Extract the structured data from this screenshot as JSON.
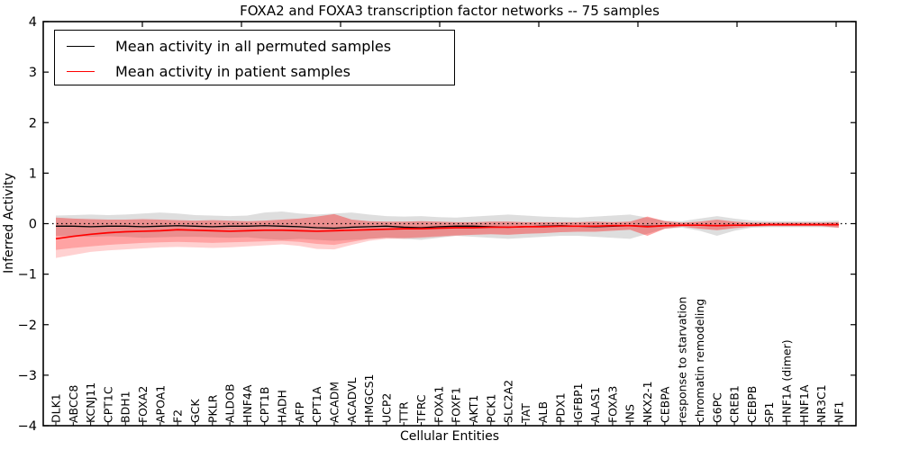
{
  "chart_data": {
    "type": "line",
    "title": "FOXA2 and FOXA3 transcription factor networks -- 75 samples",
    "xlabel": "Cellular Entities",
    "ylabel": "Inferred Activity",
    "ylim": [
      -4,
      4
    ],
    "yticks": [
      -4,
      -3,
      -2,
      -1,
      0,
      1,
      2,
      3,
      4
    ],
    "grid": false,
    "legend_position": "upper left",
    "zero_line": {
      "y": 0,
      "style": "dotted",
      "color": "#000000"
    },
    "categories": [
      "DLK1",
      "ABCC8",
      "KCNJ11",
      "CPT1C",
      "BDH1",
      "FOXA2",
      "APOA1",
      "F2",
      "GCK",
      "PKLR",
      "ALDOB",
      "HNF4A",
      "CPT1B",
      "HADH",
      "AFP",
      "CPT1A",
      "ACADM",
      "ACADVL",
      "HMGCS1",
      "UCP2",
      "TTR",
      "TFRC",
      "FOXA1",
      "FOXF1",
      "AKT1",
      "PCK1",
      "SLC2A2",
      "TAT",
      "ALB",
      "PDX1",
      "IGFBP1",
      "ALAS1",
      "FOXA3",
      "INS",
      "NKX2-1",
      "CEBPA",
      "response to starvation",
      "chromatin remodeling",
      "G6PC",
      "CREB1",
      "CEBPB",
      "SP1",
      "HNF1A (dimer)",
      "HNF1A",
      "NR3C1",
      "NF1"
    ],
    "series": [
      {
        "name": "Mean activity in all permuted samples",
        "color": "#000000",
        "values": [
          -0.05,
          -0.05,
          -0.06,
          -0.05,
          -0.05,
          -0.06,
          -0.05,
          -0.04,
          -0.05,
          -0.06,
          -0.05,
          -0.05,
          -0.04,
          -0.05,
          -0.06,
          -0.08,
          -0.09,
          -0.07,
          -0.06,
          -0.05,
          -0.07,
          -0.08,
          -0.06,
          -0.05,
          -0.05,
          -0.06,
          -0.07,
          -0.06,
          -0.05,
          -0.04,
          -0.05,
          -0.06,
          -0.05,
          -0.04,
          -0.05,
          -0.04,
          -0.03,
          -0.03,
          -0.04,
          -0.03,
          -0.03,
          -0.02,
          -0.02,
          -0.02,
          -0.02,
          -0.02
        ],
        "band": {
          "color": "rgba(0,0,0,0.13)",
          "upper": [
            0.16,
            0.17,
            0.18,
            0.17,
            0.18,
            0.2,
            0.22,
            0.2,
            0.17,
            0.16,
            0.15,
            0.16,
            0.22,
            0.24,
            0.2,
            0.18,
            0.2,
            0.22,
            0.18,
            0.15,
            0.14,
            0.15,
            0.13,
            0.12,
            0.14,
            0.16,
            0.18,
            0.16,
            0.14,
            0.13,
            0.12,
            0.14,
            0.16,
            0.18,
            0.12,
            0.06,
            0.05,
            0.1,
            0.15,
            0.1,
            0.06,
            0.05,
            0.05,
            0.05,
            0.05,
            0.06
          ],
          "lower": [
            -0.24,
            -0.25,
            -0.26,
            -0.25,
            -0.26,
            -0.28,
            -0.27,
            -0.26,
            -0.26,
            -0.27,
            -0.28,
            -0.27,
            -0.3,
            -0.32,
            -0.3,
            -0.32,
            -0.34,
            -0.32,
            -0.3,
            -0.28,
            -0.3,
            -0.32,
            -0.28,
            -0.24,
            -0.26,
            -0.28,
            -0.3,
            -0.28,
            -0.26,
            -0.24,
            -0.24,
            -0.26,
            -0.28,
            -0.3,
            -0.2,
            -0.1,
            -0.08,
            -0.14,
            -0.24,
            -0.14,
            -0.08,
            -0.07,
            -0.07,
            -0.07,
            -0.07,
            -0.08
          ]
        }
      },
      {
        "name": "Mean activity in patient samples",
        "color": "#ff0000",
        "values": [
          -0.3,
          -0.25,
          -0.21,
          -0.18,
          -0.16,
          -0.15,
          -0.14,
          -0.12,
          -0.13,
          -0.14,
          -0.15,
          -0.14,
          -0.13,
          -0.13,
          -0.14,
          -0.15,
          -0.14,
          -0.13,
          -0.12,
          -0.11,
          -0.1,
          -0.1,
          -0.09,
          -0.08,
          -0.08,
          -0.07,
          -0.07,
          -0.06,
          -0.06,
          -0.05,
          -0.05,
          -0.05,
          -0.04,
          -0.04,
          -0.06,
          -0.04,
          -0.03,
          -0.03,
          -0.04,
          -0.03,
          -0.03,
          -0.02,
          -0.02,
          -0.02,
          -0.02,
          -0.02
        ],
        "band": {
          "color": "rgba(255,0,0,0.22)",
          "upper": [
            0.12,
            0.1,
            0.09,
            0.08,
            0.08,
            0.09,
            0.08,
            0.07,
            0.06,
            0.07,
            0.06,
            0.05,
            0.06,
            0.08,
            0.1,
            0.14,
            0.19,
            0.08,
            0.05,
            0.04,
            0.04,
            0.05,
            0.04,
            0.03,
            0.03,
            0.04,
            0.04,
            0.03,
            0.03,
            0.03,
            0.03,
            0.04,
            0.03,
            0.04,
            0.14,
            0.05,
            0.02,
            0.04,
            0.08,
            0.04,
            0.02,
            0.02,
            0.02,
            0.02,
            0.02,
            0.03
          ],
          "lower": [
            -0.52,
            -0.48,
            -0.45,
            -0.42,
            -0.4,
            -0.38,
            -0.37,
            -0.36,
            -0.37,
            -0.38,
            -0.37,
            -0.36,
            -0.35,
            -0.34,
            -0.36,
            -0.4,
            -0.42,
            -0.36,
            -0.3,
            -0.28,
            -0.28,
            -0.27,
            -0.25,
            -0.23,
            -0.22,
            -0.21,
            -0.22,
            -0.2,
            -0.19,
            -0.17,
            -0.16,
            -0.16,
            -0.14,
            -0.12,
            -0.24,
            -0.1,
            -0.06,
            -0.1,
            -0.13,
            -0.09,
            -0.06,
            -0.05,
            -0.05,
            -0.05,
            -0.05,
            -0.08
          ]
        },
        "outer_band": {
          "color": "rgba(255,0,0,0.18)",
          "upper": [
            0.12,
            0.1,
            0.09,
            0.08,
            0.08,
            0.09,
            0.08,
            0.07,
            0.06,
            0.07,
            0.06,
            0.05,
            0.06,
            0.08,
            0.1,
            0.14,
            0.19,
            0.08,
            0.05,
            0.04,
            0.04,
            0.05,
            0.04,
            0.03,
            0.03,
            0.04,
            0.04,
            0.03,
            0.03,
            0.03,
            0.03,
            0.04,
            0.03,
            0.04,
            0.14,
            0.05,
            0.02,
            0.04,
            0.08,
            0.04,
            0.02,
            0.02,
            0.02,
            0.02,
            0.02,
            0.03
          ],
          "lower": [
            -0.68,
            -0.62,
            -0.56,
            -0.53,
            -0.51,
            -0.49,
            -0.47,
            -0.46,
            -0.47,
            -0.48,
            -0.47,
            -0.45,
            -0.43,
            -0.41,
            -0.44,
            -0.5,
            -0.51,
            -0.42,
            -0.34,
            -0.3,
            -0.3,
            -0.28,
            -0.26,
            -0.24,
            -0.22,
            -0.21,
            -0.22,
            -0.2,
            -0.19,
            -0.17,
            -0.16,
            -0.16,
            -0.14,
            -0.12,
            -0.24,
            -0.1,
            -0.06,
            -0.1,
            -0.13,
            -0.09,
            -0.06,
            -0.05,
            -0.05,
            -0.05,
            -0.05,
            -0.08
          ]
        }
      }
    ]
  }
}
